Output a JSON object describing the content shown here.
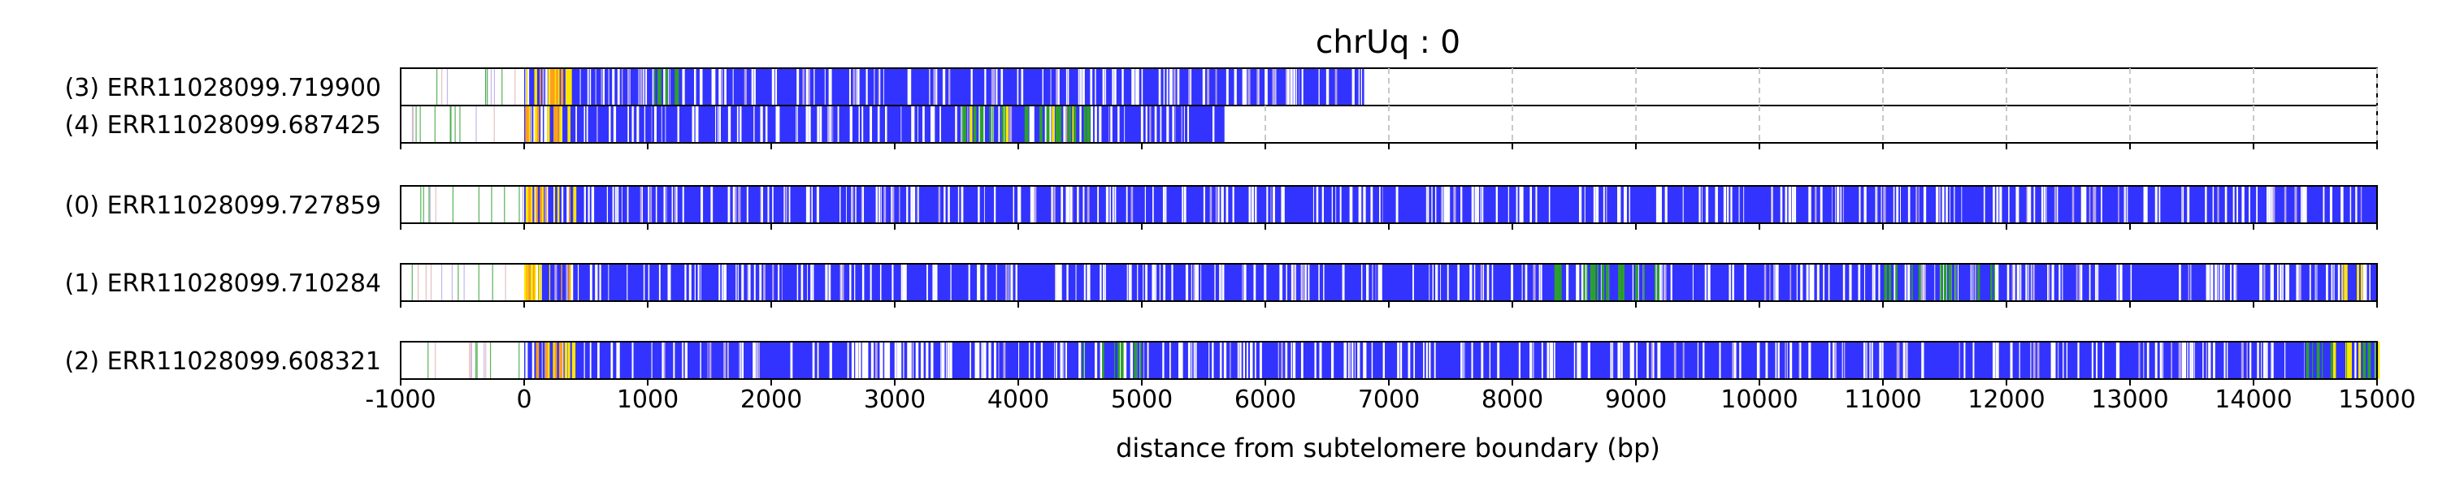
{
  "chart_data": {
    "type": "heatmap",
    "title": "chrUq : 0",
    "xlabel": "distance from subtelomere boundary (bp)",
    "xlim": [
      -1000,
      15000
    ],
    "xticks": [
      -1000,
      0,
      1000,
      2000,
      3000,
      4000,
      5000,
      6000,
      7000,
      8000,
      9000,
      10000,
      11000,
      12000,
      13000,
      14000,
      15000
    ],
    "grid": "vertical dashed lines at each x tick",
    "colors": {
      "base": "#3333ff",
      "green": "#2ca02c",
      "yellow": "#ffe600",
      "orange": "#ff9f1a",
      "lavender": "#b6a3e8",
      "white": "#ffffff",
      "grid": "#c8c8c8"
    },
    "groups": [
      {
        "reads": [
          {
            "label": "(3) ERR11028099.719900",
            "start": -1000,
            "end": 6800
          },
          {
            "label": "(4) ERR11028099.687425",
            "start": -1000,
            "end": 5680
          }
        ]
      },
      {
        "reads": [
          {
            "label": "(0) ERR11028099.727859",
            "start": -1000,
            "end": 15000
          }
        ]
      },
      {
        "reads": [
          {
            "label": "(1) ERR11028099.710284",
            "start": -1000,
            "end": 15000
          }
        ]
      },
      {
        "reads": [
          {
            "label": "(2) ERR11028099.608321",
            "start": -1000,
            "end": 15000
          }
        ]
      }
    ],
    "color_regions": [
      {
        "read": 0,
        "from": -1000,
        "to": 0,
        "color": "white"
      },
      {
        "read": 0,
        "from": 0,
        "to": 6800,
        "color": "base"
      },
      {
        "read": 0,
        "from": 0,
        "to": 420,
        "color": "yellow",
        "density": 0.35
      },
      {
        "read": 0,
        "from": 0,
        "to": 420,
        "color": "orange",
        "density": 0.2
      },
      {
        "read": 0,
        "from": 1000,
        "to": 1250,
        "color": "green",
        "density": 0.45
      },
      {
        "read": 1,
        "from": -1000,
        "to": 0,
        "color": "white"
      },
      {
        "read": 1,
        "from": 0,
        "to": 5680,
        "color": "base"
      },
      {
        "read": 1,
        "from": 0,
        "to": 420,
        "color": "yellow",
        "density": 0.35
      },
      {
        "read": 1,
        "from": 0,
        "to": 420,
        "color": "orange",
        "density": 0.2
      },
      {
        "read": 1,
        "from": 3500,
        "to": 4600,
        "color": "green",
        "density": 0.45
      },
      {
        "read": 1,
        "from": 3500,
        "to": 4600,
        "color": "yellow",
        "density": 0.08
      },
      {
        "read": 2,
        "from": -1000,
        "to": 0,
        "color": "white"
      },
      {
        "read": 2,
        "from": 0,
        "to": 15000,
        "color": "base"
      },
      {
        "read": 2,
        "from": 0,
        "to": 420,
        "color": "yellow",
        "density": 0.3
      },
      {
        "read": 2,
        "from": 0,
        "to": 420,
        "color": "orange",
        "density": 0.2
      },
      {
        "read": 3,
        "from": -1000,
        "to": 0,
        "color": "white"
      },
      {
        "read": 3,
        "from": 0,
        "to": 15000,
        "color": "base"
      },
      {
        "read": 3,
        "from": 0,
        "to": 420,
        "color": "yellow",
        "density": 0.3
      },
      {
        "read": 3,
        "from": 0,
        "to": 420,
        "color": "orange",
        "density": 0.2
      },
      {
        "read": 3,
        "from": 8300,
        "to": 9200,
        "color": "green",
        "density": 0.3
      },
      {
        "read": 3,
        "from": 11000,
        "to": 12000,
        "color": "green",
        "density": 0.2
      },
      {
        "read": 3,
        "from": 14700,
        "to": 15000,
        "color": "yellow",
        "density": 0.3
      },
      {
        "read": 4,
        "from": -1000,
        "to": 0,
        "color": "white"
      },
      {
        "read": 4,
        "from": 0,
        "to": 15000,
        "color": "base"
      },
      {
        "read": 4,
        "from": 0,
        "to": 420,
        "color": "yellow",
        "density": 0.3
      },
      {
        "read": 4,
        "from": 0,
        "to": 420,
        "color": "orange",
        "density": 0.2
      },
      {
        "read": 4,
        "from": 2600,
        "to": 3500,
        "color": "white",
        "density": 0.3
      },
      {
        "read": 4,
        "from": 4500,
        "to": 5000,
        "color": "green",
        "density": 0.3
      },
      {
        "read": 4,
        "from": 14400,
        "to": 15000,
        "color": "green",
        "density": 0.35
      },
      {
        "read": 4,
        "from": 14400,
        "to": 15000,
        "color": "yellow",
        "density": 0.15
      }
    ]
  }
}
